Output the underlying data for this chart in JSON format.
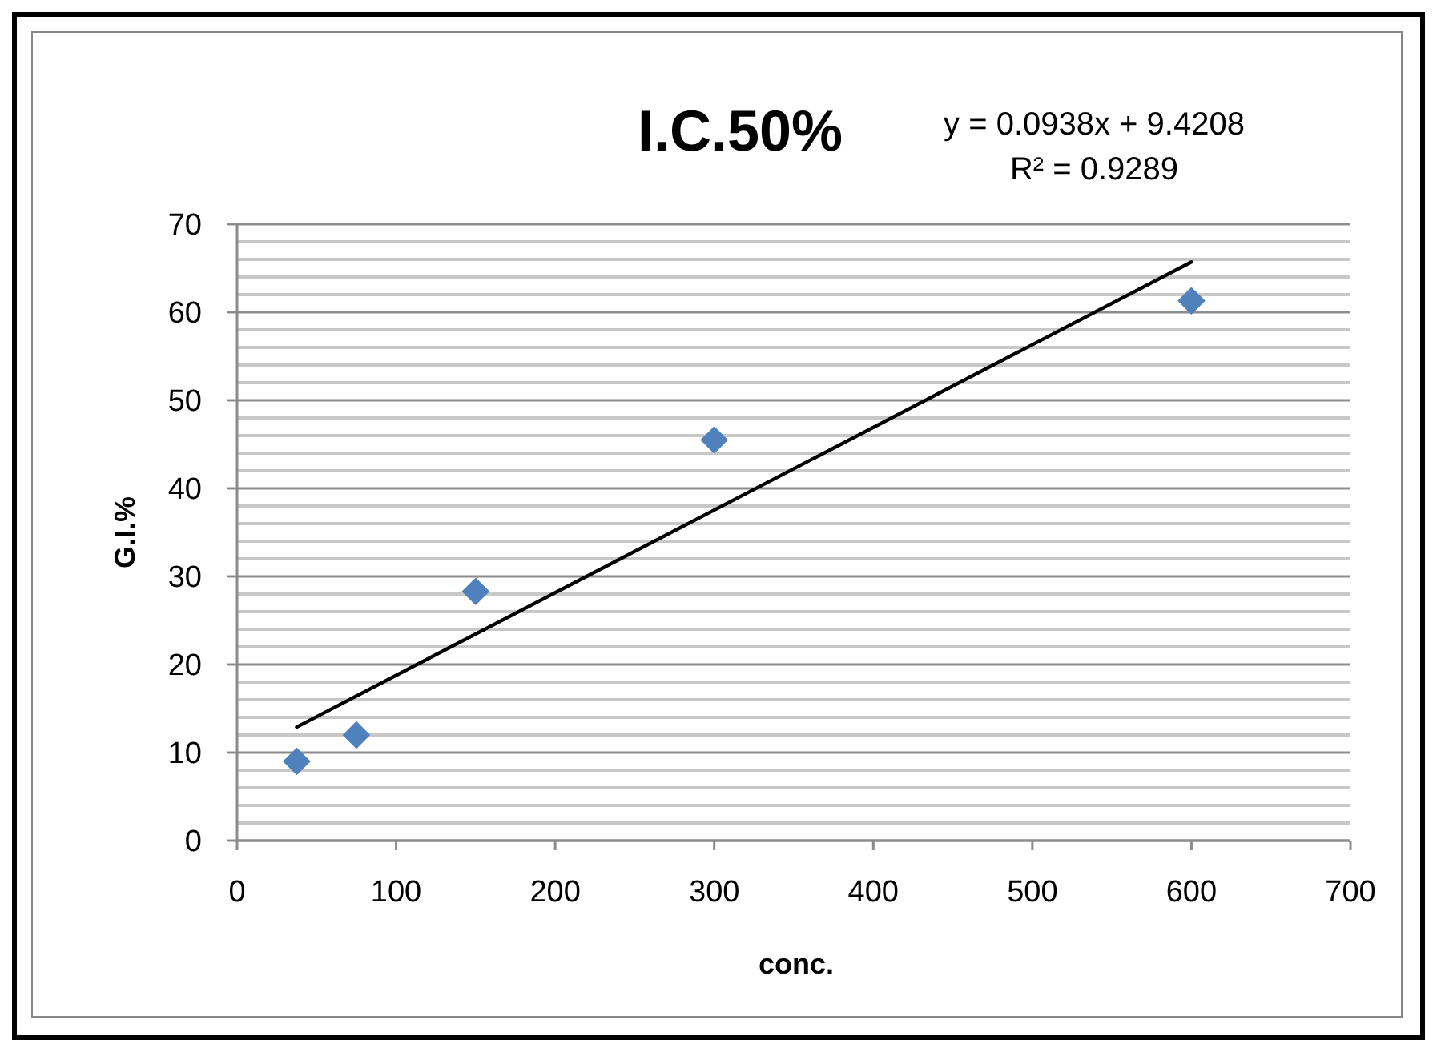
{
  "chart_data": {
    "type": "scatter",
    "title": "I.C.50%",
    "xlabel": "conc.",
    "ylabel": "G.I.%",
    "annotations": [
      "y = 0.0938x + 9.4208",
      "R² = 0.9289"
    ],
    "xlim": [
      0,
      700
    ],
    "xticks": [
      0,
      100,
      200,
      300,
      400,
      500,
      600,
      700
    ],
    "ylim": [
      0,
      70
    ],
    "yticks": [
      0,
      {
        "value": 2,
        "label": null
      },
      {
        "value": 4,
        "label": null
      },
      {
        "value": 6,
        "label": null
      },
      {
        "value": 8,
        "label": null
      },
      10,
      {
        "value": 12,
        "label": null
      },
      {
        "value": 14,
        "label": null
      },
      {
        "value": 16,
        "label": null
      },
      {
        "value": 18,
        "label": null
      },
      20,
      {
        "value": 22,
        "label": null
      },
      {
        "value": 24,
        "label": null
      },
      {
        "value": 26,
        "label": null
      },
      {
        "value": 28,
        "label": null
      },
      30,
      {
        "value": 32,
        "label": null
      },
      {
        "value": 34,
        "label": null
      },
      {
        "value": 36,
        "label": null
      },
      {
        "value": 38,
        "label": null
      },
      40,
      {
        "value": 42,
        "label": null
      },
      {
        "value": 44,
        "label": null
      },
      {
        "value": 46,
        "label": null
      },
      {
        "value": 48,
        "label": null
      },
      50,
      {
        "value": 52,
        "label": null
      },
      {
        "value": 54,
        "label": null
      },
      {
        "value": 56,
        "label": null
      },
      {
        "value": 58,
        "label": null
      },
      60,
      {
        "value": 62,
        "label": null
      },
      {
        "value": 64,
        "label": null
      },
      {
        "value": 66,
        "label": null
      },
      {
        "value": 68,
        "label": null
      },
      70
    ],
    "grid": "y",
    "series": [
      {
        "color": "#4f81bd",
        "marker": "diamond",
        "x": [
          37.5,
          75,
          150,
          300,
          600
        ],
        "values": [
          9,
          12,
          28.3,
          45.5,
          61.3
        ]
      },
      {
        "type": "line",
        "color": "#000000",
        "marker": "none",
        "line_style": "solid",
        "x": [
          37.5,
          600
        ],
        "values": [
          12.9,
          65.7
        ]
      }
    ]
  }
}
